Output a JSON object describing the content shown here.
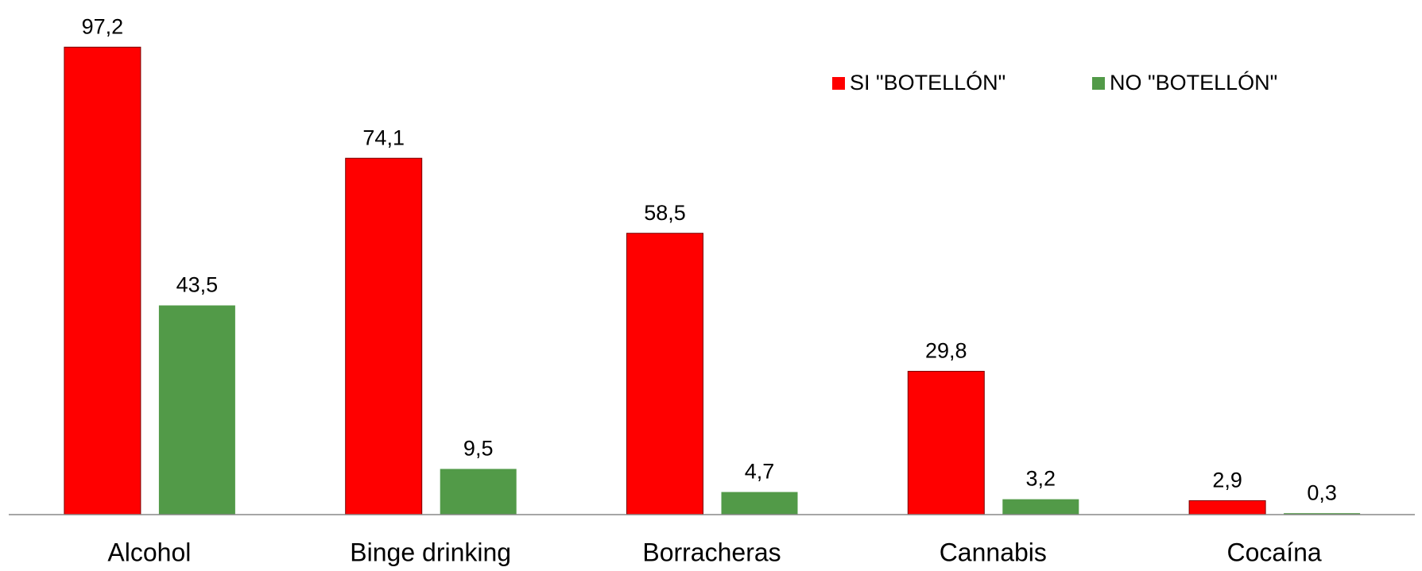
{
  "chart_data": {
    "type": "bar",
    "categories": [
      "Alcohol",
      "Binge drinking",
      "Borracheras",
      "Cannabis",
      "Cocaína"
    ],
    "series": [
      {
        "name": "SI \"BOTELLÓN\"",
        "color": "#ff0000",
        "values": [
          97.2,
          74.1,
          58.5,
          29.8,
          2.9
        ],
        "value_labels": [
          "97,2",
          "74,1",
          "58,5",
          "29,8",
          "2,9"
        ]
      },
      {
        "name": "NO \"BOTELLÓN\"",
        "color": "#529a48",
        "values": [
          43.5,
          9.5,
          4.7,
          3.2,
          0.3
        ],
        "value_labels": [
          "43,5",
          "9,5",
          "4,7",
          "3,2",
          "0,3"
        ]
      }
    ],
    "ylim": [
      0,
      107
    ],
    "legend": "top-right"
  }
}
